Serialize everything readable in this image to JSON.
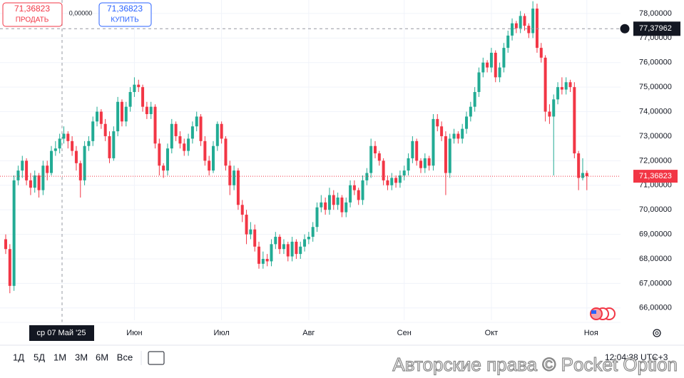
{
  "chart_data": {
    "type": "candlestick",
    "categories": [
      null,
      null,
      null,
      null,
      null,
      null,
      null,
      null,
      null,
      null,
      null,
      null,
      null,
      null,
      null,
      null,
      null,
      null,
      null,
      null,
      null,
      null,
      null,
      null,
      null,
      null,
      null,
      null,
      null,
      null,
      null,
      "Июн",
      null,
      null,
      null,
      null,
      null,
      null,
      null,
      null,
      null,
      null,
      null,
      null,
      null,
      null,
      null,
      null,
      null,
      null,
      null,
      null,
      "Июл",
      null,
      null,
      null,
      null,
      null,
      null,
      null,
      null,
      null,
      null,
      null,
      null,
      null,
      null,
      null,
      null,
      null,
      null,
      null,
      null,
      "Авг",
      null,
      null,
      null,
      null,
      null,
      null,
      null,
      null,
      null,
      null,
      null,
      null,
      null,
      null,
      null,
      null,
      null,
      null,
      null,
      null,
      null,
      null,
      "Сен",
      null,
      null,
      null,
      null,
      null,
      null,
      null,
      null,
      null,
      null,
      null,
      null,
      null,
      null,
      null,
      null,
      null,
      null,
      null,
      null,
      "Окт",
      null,
      null,
      null,
      null,
      null,
      null,
      null,
      null,
      null,
      null,
      null,
      null,
      null,
      null,
      null,
      null,
      null,
      null,
      null,
      null,
      null,
      null,
      "Ноя"
    ],
    "open": [
      68.8,
      68.4,
      66.9,
      71.2,
      71.6,
      72.0,
      71.2,
      70.9,
      71.4,
      70.8,
      71.8,
      71.5,
      72.4,
      72.5,
      72.9,
      73.1,
      72.8,
      72.4,
      71.9,
      71.2,
      72.6,
      72.8,
      73.6,
      74.0,
      73.5,
      73.0,
      72.1,
      73.2,
      74.4,
      73.6,
      74.2,
      74.8,
      75.1,
      75.0,
      74.2,
      73.9,
      74.2,
      72.7,
      71.8,
      71.6,
      72.5,
      73.5,
      73.0,
      72.7,
      72.4,
      72.9,
      73.4,
      73.8,
      72.8,
      72.0,
      71.6,
      72.6,
      73.5,
      72.9,
      71.8,
      71.0,
      71.6,
      70.2,
      69.8,
      69.0,
      69.2,
      68.5,
      67.8,
      68.0,
      67.9,
      68.6,
      68.9,
      68.4,
      68.6,
      68.1,
      68.7,
      68.2,
      68.5,
      68.8,
      68.9,
      69.3,
      70.1,
      70.3,
      70.0,
      70.6,
      70.2,
      70.5,
      69.9,
      70.3,
      71.0,
      70.8,
      70.4,
      71.2,
      71.5,
      72.6,
      72.3,
      72.0,
      71.2,
      71.0,
      71.3,
      71.1,
      71.4,
      71.6,
      72.1,
      72.8,
      72.0,
      71.7,
      72.1,
      71.8,
      73.7,
      73.4,
      73.0,
      71.5,
      72.9,
      73.1,
      72.9,
      73.3,
      73.8,
      74.2,
      74.8,
      75.6,
      76.0,
      75.8,
      76.4,
      75.4,
      75.8,
      76.6,
      77.1,
      77.6,
      77.4,
      77.9,
      77.5,
      77.2,
      78.2,
      76.6,
      76.2,
      74.0,
      73.8,
      74.5,
      75.0,
      74.9,
      75.2,
      75.0,
      72.3,
      71.3,
      71.5
    ],
    "high": [
      69.0,
      68.6,
      71.4,
      71.8,
      72.2,
      72.1,
      71.5,
      71.6,
      71.5,
      72.0,
      72.0,
      72.6,
      72.8,
      73.1,
      73.4,
      73.2,
      73.0,
      72.6,
      72.0,
      72.8,
      73.0,
      73.8,
      74.2,
      74.1,
      73.7,
      73.2,
      73.4,
      74.6,
      74.5,
      74.4,
      75.0,
      75.4,
      75.3,
      75.1,
      74.4,
      74.4,
      74.3,
      72.9,
      71.9,
      72.7,
      73.7,
      73.6,
      73.2,
      72.9,
      73.1,
      73.6,
      74.0,
      73.9,
      73.0,
      72.2,
      72.8,
      73.6,
      73.6,
      73.0,
      72.0,
      71.8,
      71.7,
      70.4,
      70.0,
      69.5,
      69.4,
      68.7,
      68.3,
      68.2,
      68.8,
      69.1,
      69.0,
      68.8,
      68.7,
      68.9,
      68.8,
      68.7,
      69.0,
      69.1,
      69.5,
      70.3,
      70.6,
      70.5,
      70.9,
      70.8,
      70.7,
      70.6,
      70.5,
      71.2,
      71.2,
      70.9,
      71.4,
      71.7,
      72.9,
      72.8,
      72.4,
      72.1,
      71.4,
      71.5,
      71.4,
      71.6,
      71.8,
      72.3,
      73.0,
      72.9,
      72.1,
      72.3,
      72.2,
      73.9,
      73.9,
      73.6,
      73.2,
      73.1,
      73.3,
      73.2,
      73.5,
      74.0,
      74.4,
      75.0,
      75.8,
      76.2,
      76.1,
      76.6,
      76.5,
      76.0,
      76.8,
      77.3,
      77.8,
      77.7,
      78.1,
      78.0,
      77.6,
      78.5,
      78.4,
      76.8,
      76.3,
      74.3,
      74.7,
      75.2,
      75.4,
      75.4,
      75.3,
      75.2,
      72.4,
      72.1,
      71.6
    ],
    "low": [
      68.2,
      66.6,
      66.7,
      71.0,
      71.3,
      71.0,
      70.6,
      70.7,
      70.5,
      70.6,
      71.2,
      71.4,
      72.2,
      72.3,
      72.7,
      72.5,
      72.2,
      71.6,
      70.5,
      71.0,
      72.4,
      72.6,
      73.4,
      73.3,
      72.8,
      71.9,
      72.0,
      73.0,
      73.4,
      73.4,
      74.0,
      74.6,
      74.8,
      74.0,
      73.7,
      73.7,
      72.5,
      71.4,
      71.3,
      71.4,
      72.3,
      72.8,
      72.5,
      72.2,
      72.2,
      72.7,
      73.2,
      72.6,
      71.8,
      71.4,
      71.5,
      72.4,
      72.7,
      71.6,
      70.6,
      70.8,
      70.0,
      69.5,
      68.6,
      68.8,
      68.3,
      67.6,
      67.6,
      67.7,
      67.7,
      68.4,
      68.2,
      68.2,
      67.9,
      67.9,
      68.0,
      68.0,
      68.3,
      68.6,
      68.7,
      69.1,
      69.9,
      69.8,
      69.8,
      70.0,
      70.0,
      69.7,
      69.7,
      70.1,
      70.6,
      70.2,
      70.2,
      71.0,
      71.3,
      72.1,
      71.8,
      71.0,
      70.8,
      70.8,
      70.9,
      70.9,
      71.2,
      71.4,
      71.9,
      71.8,
      71.5,
      71.5,
      71.6,
      71.6,
      73.2,
      72.8,
      70.6,
      71.3,
      72.7,
      72.7,
      72.7,
      73.1,
      73.6,
      74.0,
      74.6,
      75.4,
      75.6,
      75.6,
      75.2,
      75.2,
      75.6,
      76.4,
      76.9,
      77.2,
      77.2,
      77.3,
      77.0,
      77.0,
      76.4,
      76.0,
      73.6,
      73.5,
      71.4,
      74.3,
      74.7,
      74.7,
      74.8,
      72.1,
      70.8,
      71.2,
      70.8
    ],
    "close": [
      68.4,
      66.9,
      71.2,
      71.6,
      72.0,
      71.2,
      70.9,
      71.4,
      70.8,
      71.8,
      71.5,
      72.4,
      72.5,
      72.9,
      73.1,
      72.8,
      72.4,
      71.9,
      71.2,
      72.6,
      72.8,
      73.6,
      74.0,
      73.5,
      73.0,
      72.1,
      73.2,
      74.4,
      73.6,
      74.2,
      74.8,
      75.1,
      75.0,
      74.2,
      73.9,
      74.2,
      72.7,
      71.8,
      71.6,
      72.5,
      73.5,
      73.0,
      72.7,
      72.4,
      72.9,
      73.4,
      73.8,
      72.8,
      72.0,
      71.6,
      72.6,
      73.5,
      72.9,
      71.8,
      71.0,
      71.6,
      70.2,
      69.8,
      69.0,
      69.2,
      68.5,
      67.8,
      68.0,
      67.9,
      68.6,
      68.9,
      68.4,
      68.6,
      68.1,
      68.7,
      68.2,
      68.5,
      68.8,
      68.9,
      69.3,
      70.1,
      70.3,
      70.0,
      70.6,
      70.2,
      70.5,
      69.9,
      70.3,
      71.0,
      70.8,
      70.4,
      71.2,
      71.5,
      72.6,
      72.3,
      72.0,
      71.2,
      71.0,
      71.3,
      71.1,
      71.4,
      71.6,
      72.1,
      72.8,
      72.0,
      71.7,
      72.1,
      71.8,
      73.7,
      73.4,
      73.0,
      71.5,
      72.9,
      73.1,
      72.9,
      73.3,
      73.8,
      74.2,
      74.8,
      75.6,
      76.0,
      75.8,
      76.4,
      75.4,
      75.8,
      76.6,
      77.1,
      77.6,
      77.4,
      77.9,
      77.5,
      77.2,
      78.2,
      76.6,
      76.2,
      74.0,
      73.8,
      74.5,
      75.0,
      74.9,
      75.2,
      75.0,
      72.3,
      71.3,
      71.5,
      71.36823
    ],
    "up_color": "#22ab94",
    "down_color": "#f23645",
    "ylim": [
      65.5,
      78.55
    ],
    "yticks": [
      {
        "value": 66,
        "label": "66,00000"
      },
      {
        "value": 67,
        "label": "67,00000"
      },
      {
        "value": 68,
        "label": "68,00000"
      },
      {
        "value": 69,
        "label": "69,00000"
      },
      {
        "value": 70,
        "label": "70,00000"
      },
      {
        "value": 71,
        "label": "71,00000"
      },
      {
        "value": 72,
        "label": "72,00000"
      },
      {
        "value": 73,
        "label": "73,00000"
      },
      {
        "value": 74,
        "label": "74,00000"
      },
      {
        "value": 75,
        "label": "75,00000"
      },
      {
        "value": 76,
        "label": "76,00000"
      },
      {
        "value": 77,
        "label": "77,00000"
      },
      {
        "value": 78,
        "label": "78,00000"
      }
    ],
    "grid": true,
    "last_price": {
      "value": 71.36823,
      "label": "71,36823"
    },
    "crosshair": {
      "x_label": "ср 07 Май '25",
      "y": 77.37962,
      "y_label": "77,37962"
    }
  },
  "trade_panel": {
    "sell_price": "71,36823",
    "sell_label": "ПРОДАТЬ",
    "spread": "0,00000",
    "buy_price": "71,36823",
    "buy_label": "КУПИТЬ"
  },
  "toolbar": {
    "ranges": [
      "1Д",
      "5Д",
      "1М",
      "3М",
      "6М",
      "Все"
    ],
    "time": "12:04:38 UTC+3"
  },
  "watermark": "Авторские права © Pocket Option"
}
